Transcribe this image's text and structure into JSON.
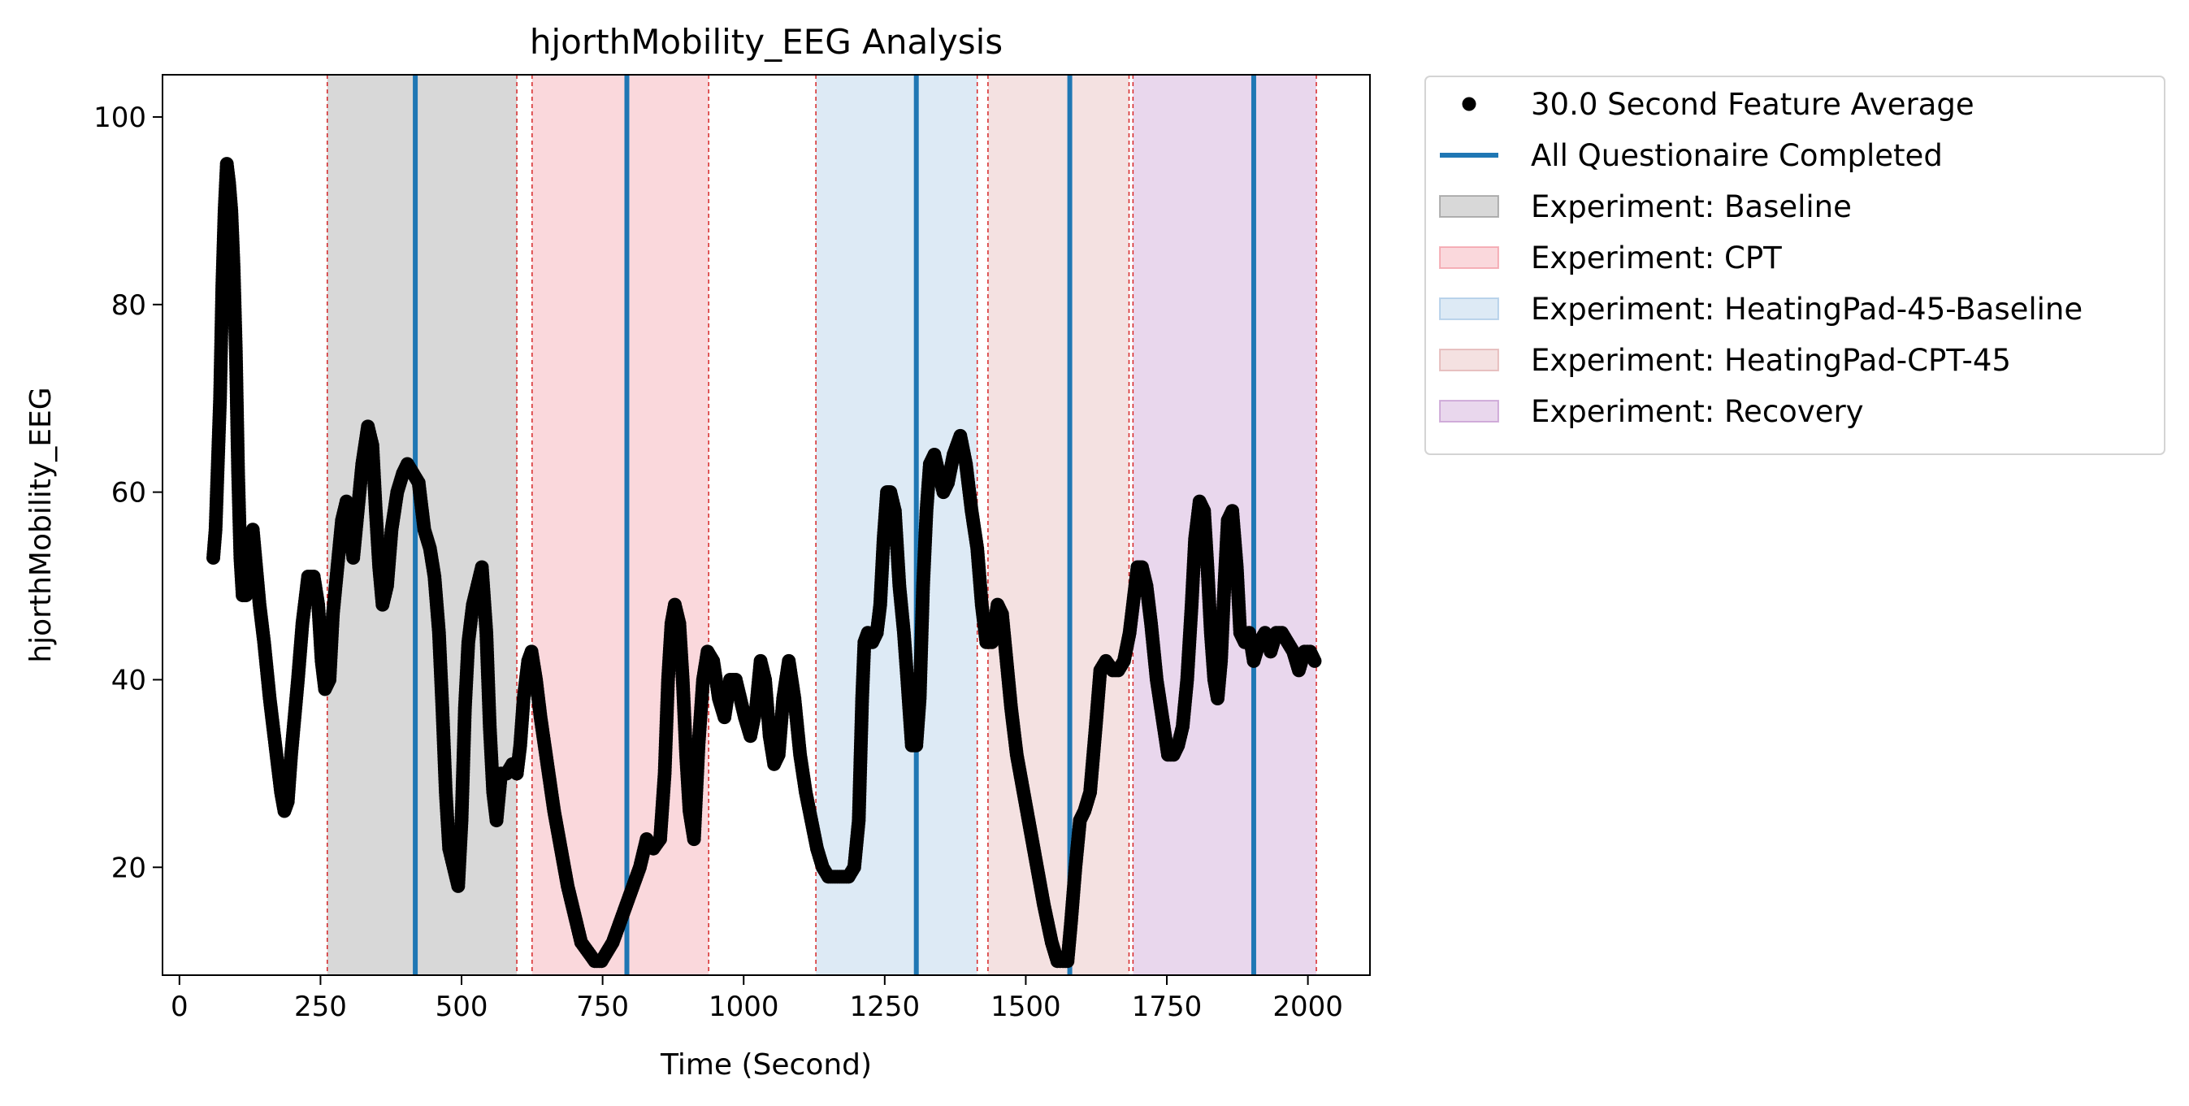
{
  "chart_data": {
    "type": "scatter",
    "title": "hjorthMobility_EEG Analysis",
    "xlabel": "Time (Second)",
    "ylabel": "hjorthMobility_EEG",
    "xlim": [
      -30,
      2110
    ],
    "ylim": [
      8.5,
      104.5
    ],
    "xticks": [
      0,
      250,
      500,
      750,
      1000,
      1250,
      1500,
      1750,
      2000
    ],
    "yticks": [
      20,
      40,
      60,
      80,
      100
    ],
    "grid": false,
    "legend_position": "outside-right",
    "marker_color": "#000000",
    "questionnaire_color": "#1f77b4",
    "boundary_color": "#d62728",
    "experiment_periods": [
      {
        "name": "Experiment: Baseline",
        "start": 262,
        "end": 598,
        "color": "#7f7f7f"
      },
      {
        "name": "Experiment: CPT",
        "start": 625,
        "end": 938,
        "color": "#ef7f8c"
      },
      {
        "name": "Experiment: HeatingPad-45-Baseline",
        "start": 1128,
        "end": 1414,
        "color": "#8fb8de"
      },
      {
        "name": "Experiment: HeatingPad-CPT-45",
        "start": 1433,
        "end": 1683,
        "color": "#d99a9a"
      },
      {
        "name": "Experiment: Recovery",
        "start": 1690,
        "end": 2015,
        "color": "#b57bc2"
      }
    ],
    "questionnaire_times": [
      418,
      793,
      1306,
      1578,
      1904
    ],
    "series_anchor_points": [
      [
        60,
        53
      ],
      [
        64,
        56
      ],
      [
        68,
        63
      ],
      [
        72,
        70
      ],
      [
        76,
        82
      ],
      [
        80,
        90
      ],
      [
        84,
        95
      ],
      [
        88,
        93
      ],
      [
        92,
        90
      ],
      [
        96,
        84
      ],
      [
        100,
        75
      ],
      [
        104,
        62
      ],
      [
        108,
        53
      ],
      [
        112,
        49
      ],
      [
        118,
        49
      ],
      [
        124,
        53
      ],
      [
        130,
        56
      ],
      [
        136,
        52
      ],
      [
        142,
        48
      ],
      [
        150,
        44
      ],
      [
        160,
        38
      ],
      [
        170,
        33
      ],
      [
        180,
        28
      ],
      [
        186,
        26
      ],
      [
        192,
        27
      ],
      [
        198,
        32
      ],
      [
        204,
        36
      ],
      [
        210,
        40
      ],
      [
        218,
        46
      ],
      [
        228,
        51
      ],
      [
        238,
        51
      ],
      [
        246,
        48
      ],
      [
        252,
        42
      ],
      [
        258,
        39
      ],
      [
        266,
        40
      ],
      [
        272,
        47
      ],
      [
        280,
        52
      ],
      [
        288,
        57
      ],
      [
        296,
        59
      ],
      [
        302,
        56
      ],
      [
        308,
        53
      ],
      [
        316,
        58
      ],
      [
        324,
        63
      ],
      [
        334,
        67
      ],
      [
        342,
        65
      ],
      [
        348,
        58
      ],
      [
        354,
        52
      ],
      [
        360,
        48
      ],
      [
        368,
        50
      ],
      [
        376,
        56
      ],
      [
        386,
        60
      ],
      [
        396,
        62
      ],
      [
        404,
        63
      ],
      [
        414,
        62
      ],
      [
        424,
        61
      ],
      [
        434,
        56
      ],
      [
        444,
        54
      ],
      [
        452,
        51
      ],
      [
        460,
        45
      ],
      [
        466,
        37
      ],
      [
        472,
        28
      ],
      [
        478,
        22
      ],
      [
        486,
        20
      ],
      [
        494,
        18
      ],
      [
        500,
        25
      ],
      [
        506,
        37
      ],
      [
        512,
        44
      ],
      [
        520,
        48
      ],
      [
        528,
        50
      ],
      [
        536,
        52
      ],
      [
        544,
        45
      ],
      [
        550,
        35
      ],
      [
        556,
        28
      ],
      [
        562,
        25
      ],
      [
        570,
        30
      ],
      [
        580,
        30
      ],
      [
        590,
        31
      ],
      [
        598,
        30
      ],
      [
        604,
        33
      ],
      [
        610,
        38
      ],
      [
        618,
        42
      ],
      [
        624,
        43
      ],
      [
        632,
        40
      ],
      [
        640,
        36
      ],
      [
        652,
        31
      ],
      [
        664,
        26
      ],
      [
        676,
        22
      ],
      [
        688,
        18
      ],
      [
        700,
        15
      ],
      [
        712,
        12
      ],
      [
        724,
        11
      ],
      [
        736,
        10
      ],
      [
        748,
        10
      ],
      [
        758,
        11
      ],
      [
        768,
        12
      ],
      [
        780,
        14
      ],
      [
        792,
        16
      ],
      [
        804,
        18
      ],
      [
        816,
        20
      ],
      [
        828,
        23
      ],
      [
        840,
        22
      ],
      [
        852,
        23
      ],
      [
        860,
        30
      ],
      [
        866,
        40
      ],
      [
        872,
        46
      ],
      [
        878,
        48
      ],
      [
        886,
        46
      ],
      [
        892,
        40
      ],
      [
        898,
        32
      ],
      [
        904,
        26
      ],
      [
        912,
        23
      ],
      [
        920,
        33
      ],
      [
        928,
        40
      ],
      [
        936,
        43
      ],
      [
        946,
        42
      ],
      [
        956,
        38
      ],
      [
        966,
        36
      ],
      [
        976,
        40
      ],
      [
        986,
        40
      ],
      [
        994,
        38
      ],
      [
        1002,
        36
      ],
      [
        1012,
        34
      ],
      [
        1022,
        37
      ],
      [
        1030,
        42
      ],
      [
        1038,
        40
      ],
      [
        1046,
        34
      ],
      [
        1054,
        31
      ],
      [
        1062,
        32
      ],
      [
        1070,
        38
      ],
      [
        1080,
        42
      ],
      [
        1090,
        38
      ],
      [
        1100,
        32
      ],
      [
        1110,
        28
      ],
      [
        1120,
        25
      ],
      [
        1130,
        22
      ],
      [
        1140,
        20
      ],
      [
        1150,
        19
      ],
      [
        1162,
        19
      ],
      [
        1174,
        19
      ],
      [
        1186,
        19
      ],
      [
        1196,
        20
      ],
      [
        1204,
        25
      ],
      [
        1210,
        38
      ],
      [
        1214,
        44
      ],
      [
        1220,
        45
      ],
      [
        1228,
        44
      ],
      [
        1236,
        45
      ],
      [
        1242,
        48
      ],
      [
        1248,
        55
      ],
      [
        1254,
        60
      ],
      [
        1260,
        60
      ],
      [
        1268,
        58
      ],
      [
        1276,
        50
      ],
      [
        1284,
        45
      ],
      [
        1290,
        40
      ],
      [
        1298,
        33
      ],
      [
        1306,
        33
      ],
      [
        1312,
        38
      ],
      [
        1318,
        50
      ],
      [
        1324,
        58
      ],
      [
        1330,
        63
      ],
      [
        1338,
        64
      ],
      [
        1346,
        62
      ],
      [
        1354,
        60
      ],
      [
        1362,
        61
      ],
      [
        1372,
        64
      ],
      [
        1384,
        66
      ],
      [
        1394,
        63
      ],
      [
        1404,
        58
      ],
      [
        1414,
        54
      ],
      [
        1422,
        48
      ],
      [
        1430,
        44
      ],
      [
        1440,
        44
      ],
      [
        1450,
        48
      ],
      [
        1458,
        47
      ],
      [
        1466,
        42
      ],
      [
        1474,
        37
      ],
      [
        1484,
        32
      ],
      [
        1496,
        28
      ],
      [
        1508,
        24
      ],
      [
        1520,
        20
      ],
      [
        1532,
        16
      ],
      [
        1546,
        12
      ],
      [
        1556,
        10
      ],
      [
        1566,
        10
      ],
      [
        1574,
        10
      ],
      [
        1580,
        14
      ],
      [
        1588,
        20
      ],
      [
        1596,
        25
      ],
      [
        1604,
        26
      ],
      [
        1614,
        28
      ],
      [
        1624,
        35
      ],
      [
        1632,
        41
      ],
      [
        1642,
        42
      ],
      [
        1654,
        41
      ],
      [
        1664,
        41
      ],
      [
        1674,
        42
      ],
      [
        1684,
        45
      ],
      [
        1690,
        48
      ],
      [
        1698,
        52
      ],
      [
        1706,
        52
      ],
      [
        1714,
        50
      ],
      [
        1722,
        46
      ],
      [
        1732,
        40
      ],
      [
        1742,
        36
      ],
      [
        1752,
        32
      ],
      [
        1762,
        32
      ],
      [
        1770,
        33
      ],
      [
        1778,
        35
      ],
      [
        1786,
        40
      ],
      [
        1794,
        48
      ],
      [
        1800,
        55
      ],
      [
        1808,
        59
      ],
      [
        1816,
        58
      ],
      [
        1822,
        52
      ],
      [
        1828,
        45
      ],
      [
        1834,
        40
      ],
      [
        1840,
        38
      ],
      [
        1846,
        42
      ],
      [
        1852,
        50
      ],
      [
        1858,
        57
      ],
      [
        1866,
        58
      ],
      [
        1874,
        52
      ],
      [
        1880,
        45
      ],
      [
        1888,
        44
      ],
      [
        1896,
        45
      ],
      [
        1904,
        42
      ],
      [
        1914,
        44
      ],
      [
        1924,
        45
      ],
      [
        1934,
        43
      ],
      [
        1944,
        45
      ],
      [
        1954,
        45
      ],
      [
        1964,
        44
      ],
      [
        1974,
        43
      ],
      [
        1984,
        41
      ],
      [
        1994,
        43
      ],
      [
        2004,
        43
      ],
      [
        2012,
        42
      ]
    ],
    "legend": [
      {
        "label": "30.0 Second Feature Average",
        "kind": "marker",
        "color": "#000000"
      },
      {
        "label": "All Questionaire Completed",
        "kind": "line",
        "color": "#1f77b4"
      },
      {
        "label": "Experiment: Baseline",
        "kind": "patch",
        "color": "#7f7f7f"
      },
      {
        "label": "Experiment: CPT",
        "kind": "patch",
        "color": "#ef7f8c"
      },
      {
        "label": "Experiment: HeatingPad-45-Baseline",
        "kind": "patch",
        "color": "#8fb8de"
      },
      {
        "label": "Experiment: HeatingPad-CPT-45",
        "kind": "patch",
        "color": "#d99a9a"
      },
      {
        "label": "Experiment: Recovery",
        "kind": "patch",
        "color": "#b57bc2"
      }
    ]
  }
}
